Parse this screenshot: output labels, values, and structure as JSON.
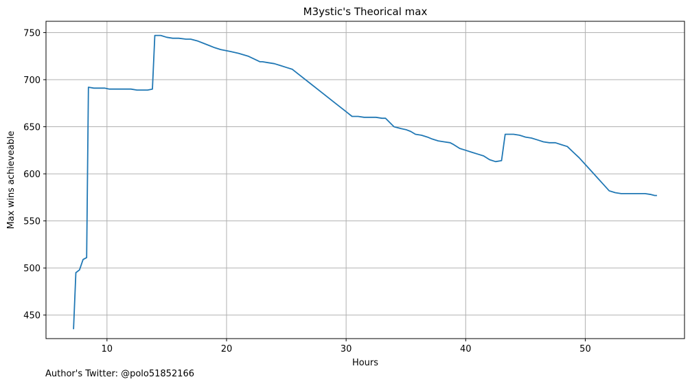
{
  "footnote": "Author's Twitter: @polo51852166",
  "chart_data": {
    "type": "line",
    "title": "M3ystic's Theorical max",
    "xlabel": "Hours",
    "ylabel": "Max wins achieveable",
    "xlim": [
      4.9,
      58.3
    ],
    "ylim": [
      425,
      762
    ],
    "xticks": [
      10,
      20,
      30,
      40,
      50
    ],
    "yticks": [
      450,
      500,
      550,
      600,
      650,
      700,
      750
    ],
    "grid": true,
    "legend": "none",
    "series": [
      {
        "color": "#1f77b4",
        "x": [
          7.2,
          7.4,
          7.7,
          8.0,
          8.3,
          8.45,
          8.9,
          9.1,
          9.5,
          9.8,
          10.2,
          10.6,
          11.0,
          11.6,
          12.0,
          12.5,
          13.0,
          13.4,
          13.8,
          14.0,
          14.3,
          14.5,
          15.0,
          15.5,
          16.0,
          16.6,
          17.0,
          17.6,
          18.0,
          18.6,
          19.0,
          19.5,
          19.9,
          20.3,
          21.0,
          21.8,
          22.3,
          22.8,
          23.0,
          23.5,
          24.0,
          24.5,
          25.0,
          25.5,
          26.0,
          27.0,
          28.0,
          29.0,
          30.0,
          30.5,
          31.0,
          31.5,
          32.0,
          32.5,
          33.0,
          33.3,
          34.0,
          34.3,
          34.6,
          35.0,
          35.4,
          35.8,
          36.3,
          36.8,
          37.2,
          37.7,
          38.2,
          38.7,
          39.0,
          39.5,
          40.0,
          40.5,
          41.0,
          41.5,
          42.0,
          42.5,
          43.0,
          43.3,
          44.0,
          44.5,
          45.0,
          45.5,
          46.0,
          46.5,
          47.0,
          47.5,
          48.0,
          48.5,
          49.0,
          49.5,
          50.0,
          50.5,
          51.0,
          51.5,
          52.0,
          52.5,
          53.0,
          53.5,
          54.0,
          54.5,
          55.0,
          55.5,
          55.8,
          56.0
        ],
        "y": [
          435,
          495,
          498,
          509,
          511,
          692,
          691,
          691,
          691,
          691,
          690,
          690,
          690,
          690,
          690,
          689,
          689,
          689,
          690,
          747,
          747,
          747,
          745,
          744,
          744,
          743,
          743,
          741,
          739,
          736,
          734,
          732,
          731,
          730,
          728,
          725,
          722,
          719,
          719,
          718,
          717,
          715,
          713,
          711,
          706,
          696,
          686,
          676,
          666,
          661,
          661,
          660,
          660,
          660,
          659,
          659,
          650,
          649,
          648,
          647,
          645,
          642,
          641,
          639,
          637,
          635,
          634,
          633,
          631,
          627,
          625,
          623,
          621,
          619,
          615,
          613,
          614,
          642,
          642,
          641,
          639,
          638,
          636,
          634,
          633,
          633,
          631,
          629,
          623,
          617,
          610,
          603,
          596,
          589,
          582,
          580,
          579,
          579,
          579,
          579,
          579,
          578,
          577,
          577
        ]
      }
    ]
  }
}
